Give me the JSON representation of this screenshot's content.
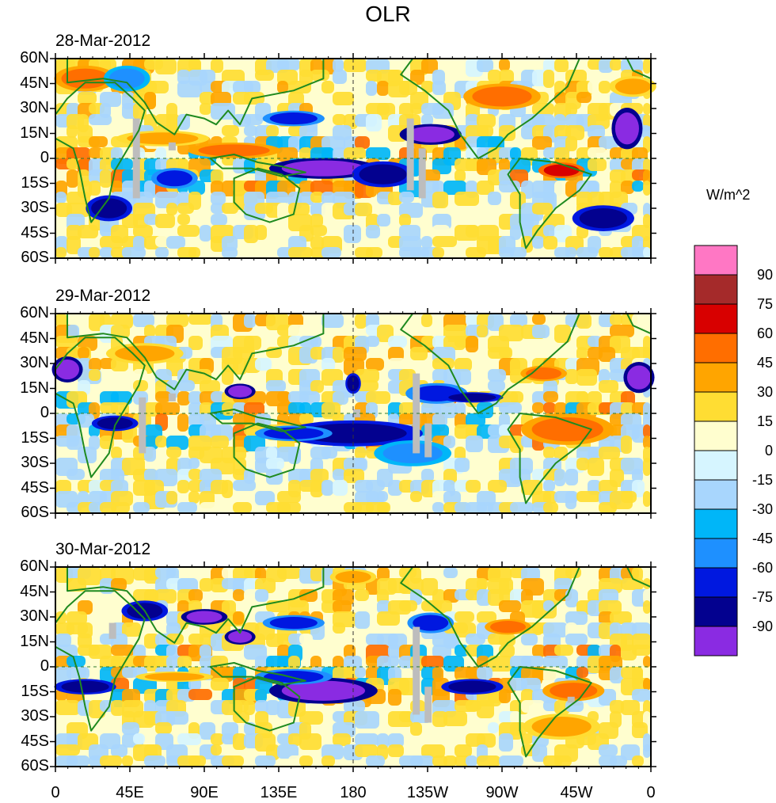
{
  "figure": {
    "title": "OLR",
    "panels": [
      {
        "date": "28-Mar-2012"
      },
      {
        "date": "29-Mar-2012"
      },
      {
        "date": "30-Mar-2012"
      }
    ],
    "lat_labels": [
      "60N",
      "45N",
      "30N",
      "15N",
      "0",
      "15S",
      "30S",
      "45S",
      "60S"
    ],
    "lon_labels": [
      "0",
      "45E",
      "90E",
      "135E",
      "180",
      "135W",
      "90W",
      "45W",
      "0"
    ]
  },
  "colorbar": {
    "units": "W/m^2",
    "labels": [
      "90",
      "75",
      "60",
      "45",
      "30",
      "15",
      "0",
      "-15",
      "-30",
      "-45",
      "-60",
      "-75",
      "-90"
    ],
    "colors": [
      "#ff77c4",
      "#a52a2a",
      "#d80000",
      "#ff6e00",
      "#ffa500",
      "#ffdd33",
      "#fffecf",
      "#d6f5ff",
      "#a8d6fd",
      "#00b6f8",
      "#1e90ff",
      "#0018e0",
      "#03018f",
      "#8a2be2"
    ]
  },
  "style": {
    "coast_color": "#1f8a1f",
    "missing_color": "#bdbdbd"
  }
}
